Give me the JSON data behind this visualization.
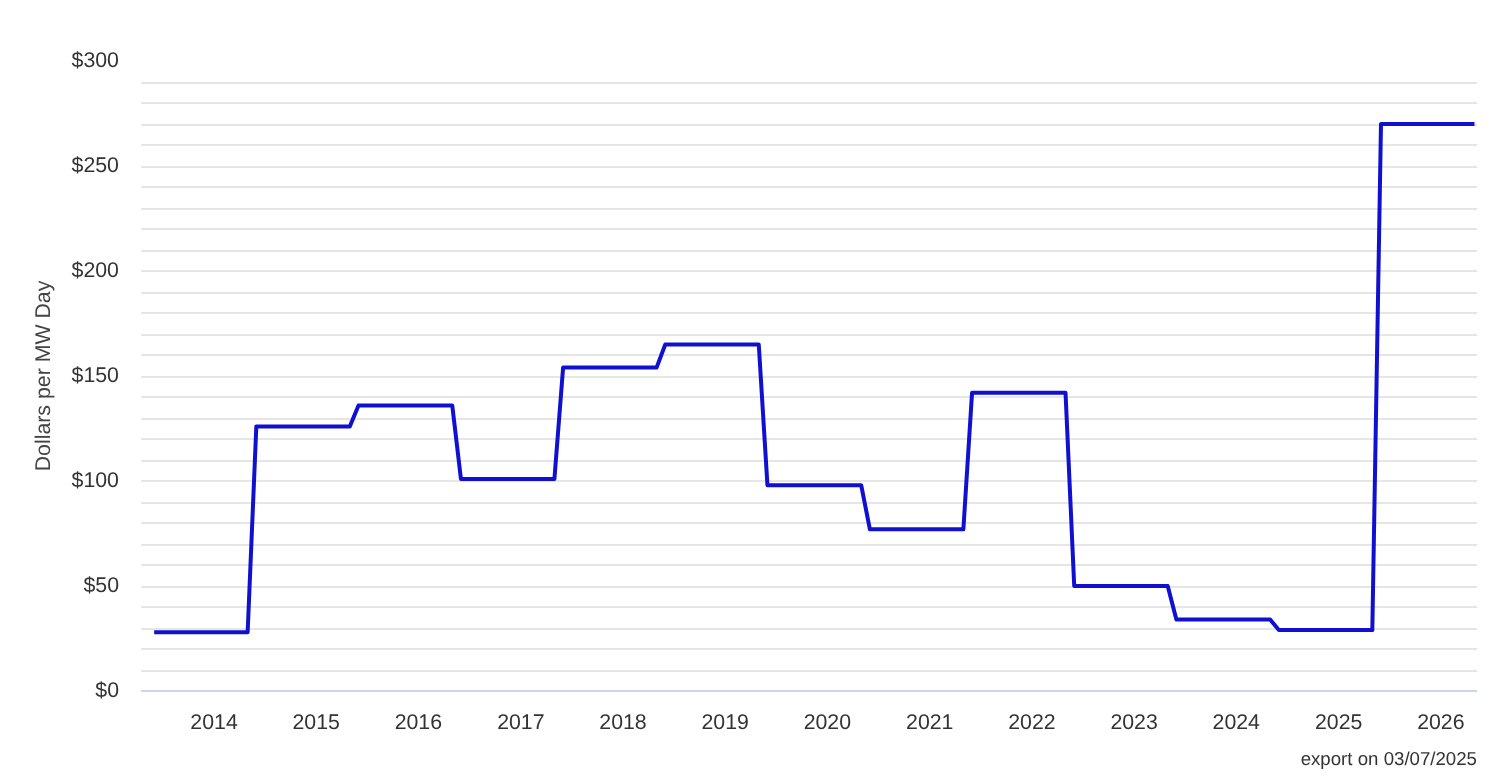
{
  "chart_data": {
    "type": "line",
    "ylabel": "Dollars per MW Day",
    "x": [
      "2013-06",
      "2014-05",
      "2014-06",
      "2015-05",
      "2015-06",
      "2016-05",
      "2016-06",
      "2017-05",
      "2017-06",
      "2018-05",
      "2018-06",
      "2019-05",
      "2019-06",
      "2020-05",
      "2020-06",
      "2021-05",
      "2021-06",
      "2022-05",
      "2022-06",
      "2023-05",
      "2023-06",
      "2024-05",
      "2024-06",
      "2025-05",
      "2025-06",
      "2026-05"
    ],
    "series": [
      {
        "color": "#1010d0",
        "values": [
          28,
          28,
          126,
          126,
          136,
          136,
          101,
          101,
          154,
          154,
          165,
          165,
          98,
          98,
          77,
          77,
          142,
          142,
          50,
          50,
          34,
          34,
          29,
          29,
          270,
          270
        ]
      }
    ],
    "xlim": [
      "2013-04-15",
      "2026-05-10"
    ],
    "xticks": [
      "2014",
      "2015",
      "2016",
      "2017",
      "2018",
      "2019",
      "2020",
      "2021",
      "2022",
      "2023",
      "2024",
      "2025",
      "2026"
    ],
    "ylim": [
      0,
      300
    ],
    "yticks": [
      {
        "value": 0,
        "label": "$0"
      },
      {
        "value": 10,
        "label": null
      },
      {
        "value": 20,
        "label": null
      },
      {
        "value": 30,
        "label": null
      },
      {
        "value": 40,
        "label": null
      },
      {
        "value": 50,
        "label": "$50"
      },
      {
        "value": 60,
        "label": null
      },
      {
        "value": 70,
        "label": null
      },
      {
        "value": 80,
        "label": null
      },
      {
        "value": 90,
        "label": null
      },
      {
        "value": 100,
        "label": "$100"
      },
      {
        "value": 110,
        "label": null
      },
      {
        "value": 120,
        "label": null
      },
      {
        "value": 130,
        "label": null
      },
      {
        "value": 140,
        "label": null
      },
      {
        "value": 150,
        "label": "$150"
      },
      {
        "value": 160,
        "label": null
      },
      {
        "value": 170,
        "label": null
      },
      {
        "value": 180,
        "label": null
      },
      {
        "value": 190,
        "label": null
      },
      {
        "value": 200,
        "label": "$200"
      },
      {
        "value": 210,
        "label": null
      },
      {
        "value": 220,
        "label": null
      },
      {
        "value": 230,
        "label": null
      },
      {
        "value": 240,
        "label": null
      },
      {
        "value": 250,
        "label": "$250"
      },
      {
        "value": 260,
        "label": null
      },
      {
        "value": 270,
        "label": null
      },
      {
        "value": 280,
        "label": null
      },
      {
        "value": 290,
        "label": null
      },
      {
        "value": 300,
        "label": "$300"
      }
    ],
    "grid": "y",
    "marker": "none",
    "line_style": "solid",
    "annotations": [
      "export on 03/07/2025"
    ]
  }
}
